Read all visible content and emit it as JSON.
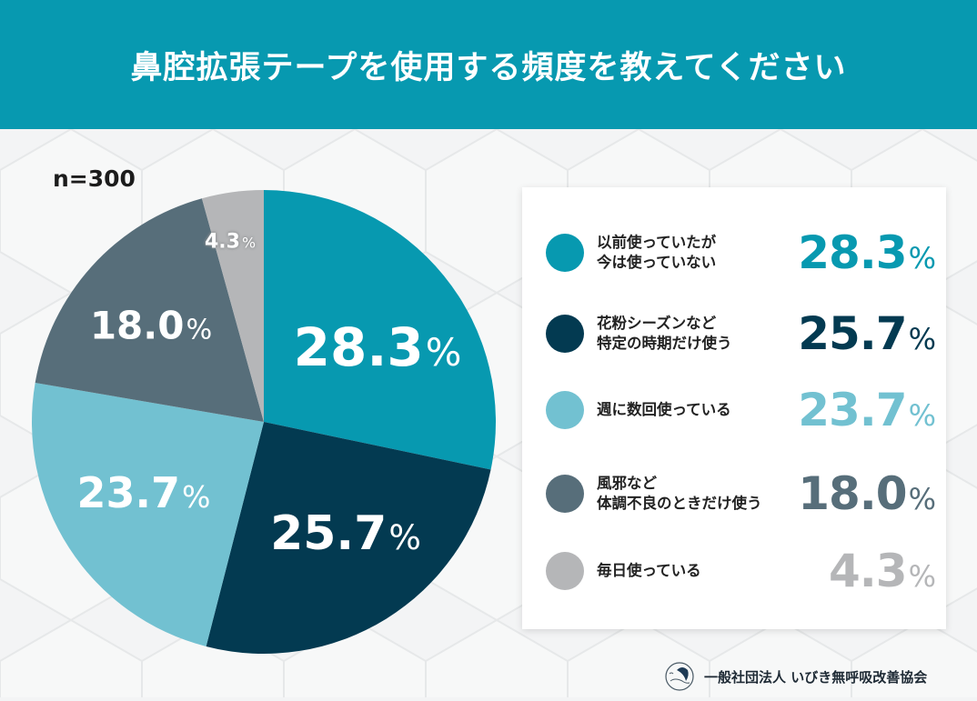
{
  "header": {
    "title": "鼻腔拡張テープを使用する頻度を教えてください"
  },
  "sample_size": "n=300",
  "colors": {
    "header_bg": "#0799b0",
    "slice_1": "#0799b0",
    "slice_2": "#033a51",
    "slice_3": "#72c1d1",
    "slice_4": "#576e7a",
    "slice_5": "#b5b6b8"
  },
  "legend": {
    "items": [
      {
        "label": "以前使っていたが\n今は使っていない",
        "value": "28.3",
        "unit": "%",
        "color": "#0799b0"
      },
      {
        "label": "花粉シーズンなど\n特定の時期だけ使う",
        "value": "25.7",
        "unit": "%",
        "color": "#033a51"
      },
      {
        "label": "週に数回使っている",
        "value": "23.7",
        "unit": "%",
        "color": "#72c1d1"
      },
      {
        "label": "風邪など\n体調不良のときだけ使う",
        "value": "18.0",
        "unit": "%",
        "color": "#576e7a"
      },
      {
        "label": "毎日使っている",
        "value": "4.3",
        "unit": "%",
        "color": "#b5b6b8"
      }
    ]
  },
  "pie_labels": [
    {
      "value": "28.3",
      "unit": "%"
    },
    {
      "value": "25.7",
      "unit": "%"
    },
    {
      "value": "23.7",
      "unit": "%"
    },
    {
      "value": "18.0",
      "unit": "%"
    },
    {
      "value": "4.3",
      "unit": "%"
    }
  ],
  "footer": {
    "org_name": "一般社団法人 いびき無呼吸改善協会",
    "logo_icon": "sleeping-person-icon"
  },
  "chart_data": {
    "type": "pie",
    "title": "鼻腔拡張テープを使用する頻度を教えてください",
    "subtitle": "n=300",
    "categories": [
      "以前使っていたが今は使っていない",
      "花粉シーズンなど特定の時期だけ使う",
      "週に数回使っている",
      "風邪など体調不良のときだけ使う",
      "毎日使っている"
    ],
    "values": [
      28.3,
      25.7,
      23.7,
      18.0,
      4.3
    ],
    "unit": "%",
    "colors": [
      "#0799b0",
      "#033a51",
      "#72c1d1",
      "#576e7a",
      "#b5b6b8"
    ],
    "start_angle": "12 o'clock, clockwise",
    "legend_position": "right"
  }
}
